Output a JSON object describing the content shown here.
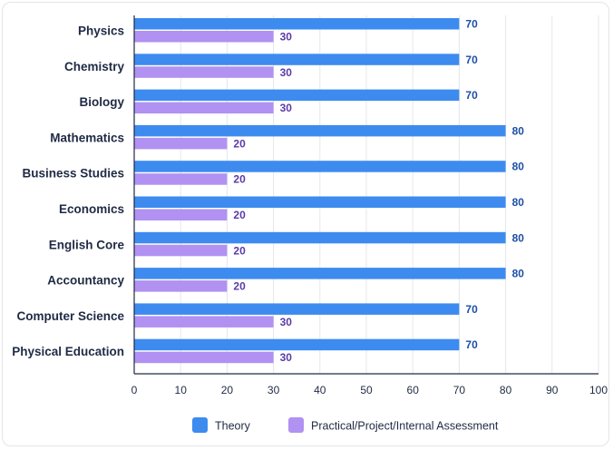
{
  "chart_data": {
    "type": "bar",
    "orientation": "horizontal",
    "title": "",
    "xlabel": "",
    "ylabel": "",
    "xlim": [
      0,
      100
    ],
    "xticks": [
      "0",
      "10",
      "20",
      "30",
      "40",
      "50",
      "60",
      "70",
      "80",
      "90",
      "100"
    ],
    "grid": "vertical",
    "legend_position": "bottom",
    "categories": [
      "Physics",
      "Chemistry",
      "Biology",
      "Mathematics",
      "Business Studies",
      "Economics",
      "English Core",
      "Accountancy",
      "Computer Science",
      "Physical Education"
    ],
    "series": [
      {
        "name": "Theory",
        "color": "#3d8bef",
        "label_color": "#1d4fa6",
        "values": [
          70,
          70,
          70,
          80,
          80,
          80,
          80,
          80,
          70,
          70
        ]
      },
      {
        "name": "Practical/Project/Internal Assessment",
        "color": "#b191f2",
        "label_color": "#5b3aa8",
        "values": [
          30,
          30,
          30,
          20,
          20,
          20,
          20,
          20,
          30,
          30
        ]
      }
    ]
  }
}
